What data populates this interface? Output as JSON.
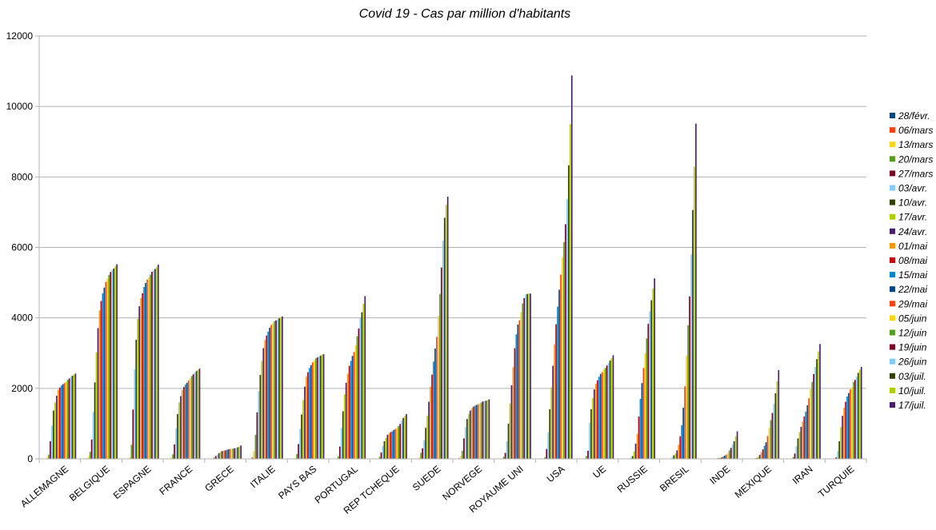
{
  "chart_data": {
    "type": "bar",
    "title": "Covid 19 - Cas par million d'habitants",
    "xlabel": "",
    "ylabel": "",
    "ylim": [
      0,
      12000
    ],
    "yticks": [
      "0",
      "2000",
      "4000",
      "6000",
      "8000",
      "10000",
      "12000"
    ],
    "grid": "horizontal",
    "legend_position": "right",
    "categories": [
      "ALLEMAGNE",
      "BELGIQUE",
      "ESPAGNE",
      "FRANCE",
      "GRECE",
      "ITALIE",
      "PAYS BAS",
      "PORTUGAL",
      "REP TCHEQUE",
      "SUEDE",
      "NORVEGE",
      "ROYAUME UNI",
      "USA",
      "UE",
      "RUSSIE",
      "BRESIL",
      "INDE",
      "MEXIQUE",
      "IRAN",
      "TURQUIE"
    ],
    "series_colors": [
      "#004586",
      "#ff420e",
      "#ffd320",
      "#579d1c",
      "#7e0021",
      "#83caff",
      "#314004",
      "#aecf00",
      "#4b1f6f",
      "#ff950e",
      "#c5000b",
      "#0084d1",
      "#004586",
      "#ff420e",
      "#ffd320",
      "#579d1c",
      "#7e0021",
      "#83caff",
      "#314004",
      "#aecf00",
      "#4b1f6f"
    ],
    "series": [
      {
        "name": "28/févr.",
        "values": [
          0,
          0,
          0,
          0,
          0,
          0,
          0,
          0,
          0,
          0,
          0,
          0,
          0,
          0,
          0,
          0,
          0,
          0,
          0,
          0
        ]
      },
      {
        "name": "06/mars",
        "values": [
          10,
          15,
          5,
          5,
          1,
          45,
          8,
          0,
          0,
          10,
          20,
          5,
          1,
          5,
          0,
          0,
          0,
          0,
          1,
          0
        ]
      },
      {
        "name": "13/mars",
        "values": [
          40,
          60,
          40,
          40,
          5,
          220,
          30,
          10,
          10,
          40,
          90,
          10,
          5,
          20,
          1,
          1,
          0,
          0,
          15,
          0
        ]
      },
      {
        "name": "20/mars",
        "values": [
          120,
          200,
          400,
          130,
          40,
          680,
          140,
          70,
          60,
          170,
          230,
          60,
          50,
          80,
          2,
          1,
          0,
          1,
          50,
          7
        ]
      },
      {
        "name": "27/mars",
        "values": [
          500,
          550,
          1400,
          410,
          80,
          1320,
          420,
          350,
          180,
          300,
          580,
          170,
          280,
          230,
          10,
          10,
          0,
          4,
          150,
          40
        ]
      },
      {
        "name": "03/avr.",
        "values": [
          950,
          1330,
          2540,
          860,
          120,
          1920,
          850,
          880,
          360,
          530,
          900,
          500,
          750,
          1020,
          30,
          50,
          2,
          10,
          360,
          220
        ]
      },
      {
        "name": "10/avr.",
        "values": [
          1370,
          2170,
          3380,
          1270,
          160,
          2380,
          1260,
          1350,
          500,
          880,
          1130,
          1000,
          1410,
          1410,
          80,
          100,
          5,
          25,
          580,
          500
        ]
      },
      {
        "name": "17/avr.",
        "values": [
          1600,
          3020,
          3970,
          1600,
          200,
          2780,
          1670,
          1830,
          590,
          1220,
          1270,
          1570,
          2030,
          1730,
          210,
          150,
          10,
          60,
          760,
          900
        ]
      },
      {
        "name": "24/avr.",
        "values": [
          1790,
          3710,
          4330,
          1780,
          220,
          3140,
          2050,
          2160,
          680,
          1620,
          1370,
          2090,
          2640,
          1970,
          430,
          240,
          20,
          110,
          910,
          1220
        ]
      },
      {
        "name": "01/mai",
        "values": [
          1960,
          4210,
          4560,
          1960,
          230,
          3370,
          2340,
          2420,
          720,
          2050,
          1430,
          2600,
          3250,
          2130,
          710,
          400,
          30,
          190,
          1060,
          1450
        ]
      },
      {
        "name": "08/mai",
        "values": [
          2020,
          4480,
          4700,
          2040,
          240,
          3500,
          2460,
          2640,
          760,
          2390,
          1480,
          3140,
          3820,
          2230,
          1200,
          640,
          40,
          270,
          1200,
          1620
        ]
      },
      {
        "name": "15/mai",
        "values": [
          2080,
          4700,
          4880,
          2110,
          255,
          3610,
          2580,
          2780,
          780,
          2760,
          1510,
          3530,
          4320,
          2330,
          1700,
          950,
          60,
          370,
          1340,
          1770
        ]
      },
      {
        "name": "22/mai",
        "values": [
          2120,
          4860,
          4990,
          2160,
          270,
          3720,
          2660,
          2920,
          820,
          3130,
          1530,
          3810,
          4800,
          2410,
          2150,
          1450,
          90,
          470,
          1520,
          1870
        ]
      },
      {
        "name": "29/mai",
        "values": [
          2150,
          5020,
          5090,
          2220,
          280,
          3800,
          2740,
          3030,
          850,
          3460,
          1550,
          3930,
          5230,
          2460,
          2580,
          2060,
          120,
          650,
          1720,
          1970
        ]
      },
      {
        "name": "05/juin",
        "values": [
          2190,
          5120,
          5150,
          2290,
          285,
          3850,
          2790,
          3220,
          880,
          4060,
          1570,
          4160,
          5720,
          2530,
          2990,
          2930,
          170,
          880,
          1970,
          2030
        ]
      },
      {
        "name": "12/juin",
        "values": [
          2240,
          5220,
          5230,
          2350,
          290,
          3900,
          2850,
          3480,
          930,
          4680,
          1600,
          4410,
          6150,
          2580,
          3420,
          3790,
          240,
          1100,
          2180,
          2180
        ]
      },
      {
        "name": "19/juin",
        "values": [
          2280,
          5300,
          5310,
          2400,
          300,
          3930,
          2880,
          3700,
          990,
          5430,
          1630,
          4560,
          6660,
          2650,
          3830,
          4610,
          310,
          1300,
          2410,
          2240
        ]
      },
      {
        "name": "26/juin",
        "values": [
          2320,
          5360,
          5360,
          2450,
          310,
          3960,
          2910,
          4000,
          1080,
          6190,
          1640,
          4660,
          7370,
          2720,
          4190,
          5800,
          410,
          1560,
          2610,
          2340
        ]
      },
      {
        "name": "03/juil.",
        "values": [
          2360,
          5400,
          5390,
          2490,
          330,
          3990,
          2930,
          4160,
          1160,
          6840,
          1650,
          4680,
          8330,
          2790,
          4500,
          7060,
          500,
          1860,
          2830,
          2440
        ]
      },
      {
        "name": "10/juil.",
        "values": [
          2390,
          5460,
          5440,
          2530,
          350,
          4020,
          2960,
          4400,
          1210,
          7210,
          1670,
          4690,
          9500,
          2860,
          4830,
          8290,
          640,
          2200,
          3050,
          2530
        ]
      },
      {
        "name": "17/juil.",
        "values": [
          2420,
          5520,
          5510,
          2560,
          380,
          4040,
          2970,
          4620,
          1270,
          7440,
          1690,
          4690,
          10880,
          2940,
          5120,
          9510,
          780,
          2520,
          3260,
          2610
        ]
      }
    ]
  }
}
